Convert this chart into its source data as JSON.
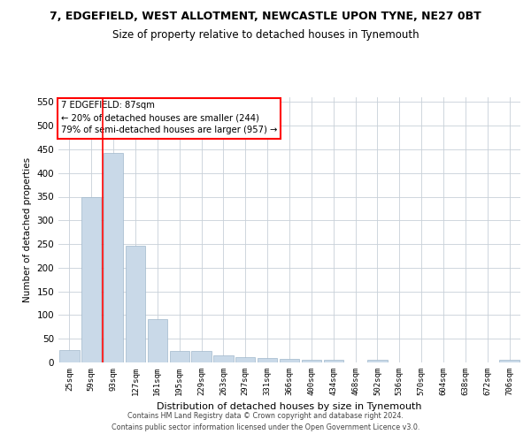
{
  "title": "7, EDGEFIELD, WEST ALLOTMENT, NEWCASTLE UPON TYNE, NE27 0BT",
  "subtitle": "Size of property relative to detached houses in Tynemouth",
  "xlabel": "Distribution of detached houses by size in Tynemouth",
  "ylabel": "Number of detached properties",
  "categories": [
    "25sqm",
    "59sqm",
    "93sqm",
    "127sqm",
    "161sqm",
    "195sqm",
    "229sqm",
    "263sqm",
    "297sqm",
    "331sqm",
    "366sqm",
    "400sqm",
    "434sqm",
    "468sqm",
    "502sqm",
    "536sqm",
    "570sqm",
    "604sqm",
    "638sqm",
    "672sqm",
    "706sqm"
  ],
  "values": [
    27,
    350,
    443,
    247,
    92,
    25,
    25,
    15,
    12,
    10,
    7,
    6,
    5,
    0,
    5,
    0,
    0,
    0,
    0,
    0,
    5
  ],
  "bar_color": "#c9d9e8",
  "bar_edge_color": "#a0b8cc",
  "ylim": [
    0,
    560
  ],
  "yticks": [
    0,
    50,
    100,
    150,
    200,
    250,
    300,
    350,
    400,
    450,
    500,
    550
  ],
  "annotation_line1": "7 EDGEFIELD: 87sqm",
  "annotation_line2": "← 20% of detached houses are smaller (244)",
  "annotation_line3": "79% of semi-detached houses are larger (957) →",
  "redline_bin_index": 2,
  "footer_line1": "Contains HM Land Registry data © Crown copyright and database right 2024.",
  "footer_line2": "Contains public sector information licensed under the Open Government Licence v3.0.",
  "background_color": "#ffffff",
  "grid_color": "#c8d0d8",
  "title_fontsize": 9,
  "subtitle_fontsize": 8.5
}
